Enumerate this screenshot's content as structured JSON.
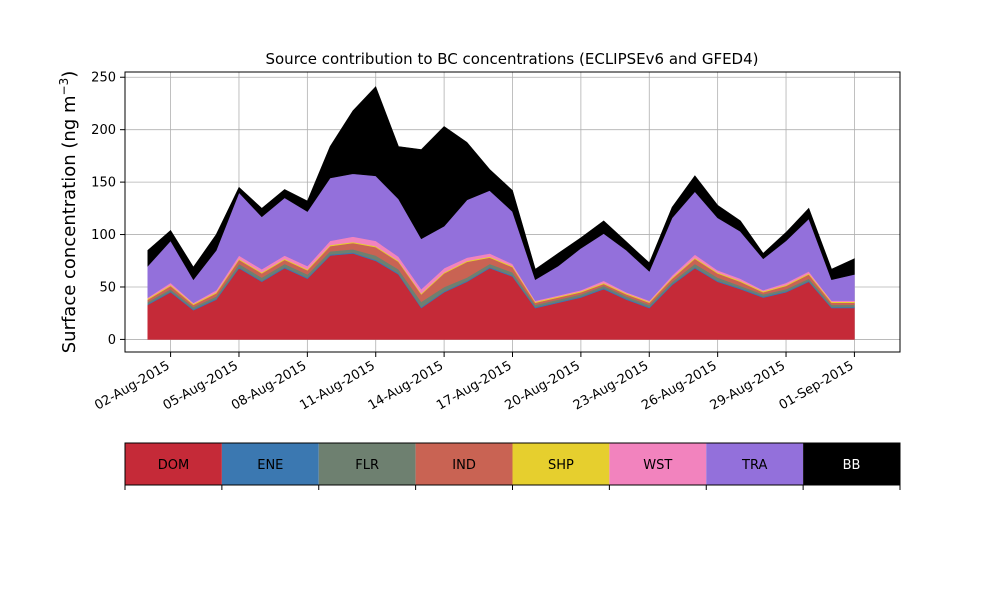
{
  "chart_data": {
    "type": "area",
    "stacked": true,
    "title": "Source contribution to BC concentrations (ECLIPSEv6 and GFED4)",
    "ylabel": "Surface concentration (ng m",
    "ylabel_unit_superscript": "−3",
    "ylabel_close": ")",
    "xlabel": "",
    "ylim": [
      -12,
      255
    ],
    "xlim": [
      "2015-07-31",
      "2015-09-03"
    ],
    "grid": true,
    "x_ticks": [
      "02-Aug-2015",
      "05-Aug-2015",
      "08-Aug-2015",
      "11-Aug-2015",
      "14-Aug-2015",
      "17-Aug-2015",
      "20-Aug-2015",
      "23-Aug-2015",
      "26-Aug-2015",
      "29-Aug-2015",
      "01-Sep-2015"
    ],
    "y_ticks": [
      0,
      50,
      100,
      150,
      200,
      250
    ],
    "x": [
      "2015-08-01",
      "2015-08-02",
      "2015-08-03",
      "2015-08-04",
      "2015-08-05",
      "2015-08-06",
      "2015-08-07",
      "2015-08-08",
      "2015-08-09",
      "2015-08-10",
      "2015-08-11",
      "2015-08-12",
      "2015-08-13",
      "2015-08-14",
      "2015-08-15",
      "2015-08-16",
      "2015-08-17",
      "2015-08-18",
      "2015-08-19",
      "2015-08-20",
      "2015-08-21",
      "2015-08-22",
      "2015-08-23",
      "2015-08-24",
      "2015-08-25",
      "2015-08-26",
      "2015-08-27",
      "2015-08-28",
      "2015-08-29",
      "2015-08-30",
      "2015-08-31",
      "2015-09-01"
    ],
    "series": [
      {
        "name": "DOM",
        "color": "#c52a38",
        "values": [
          33,
          45,
          28,
          38,
          68,
          55,
          68,
          58,
          80,
          82,
          75,
          62,
          30,
          45,
          55,
          68,
          60,
          30,
          35,
          40,
          48,
          38,
          30,
          52,
          68,
          55,
          48,
          40,
          45,
          55,
          30,
          30
        ]
      },
      {
        "name": "ENE",
        "color": "#3b78b1",
        "values": [
          1,
          1,
          1,
          1,
          1,
          1,
          1,
          1,
          1,
          1,
          1,
          1,
          1,
          1,
          1,
          1,
          1,
          1,
          1,
          1,
          1,
          1,
          1,
          1,
          1,
          1,
          1,
          1,
          1,
          1,
          1,
          1
        ]
      },
      {
        "name": "FLR",
        "color": "#6e8070",
        "values": [
          2,
          2,
          2,
          2,
          3,
          3,
          3,
          3,
          3,
          3,
          4,
          4,
          5,
          4,
          3,
          3,
          3,
          2,
          2,
          2,
          2,
          2,
          2,
          2,
          3,
          3,
          2,
          2,
          2,
          2,
          2,
          2
        ]
      },
      {
        "name": "IND",
        "color": "#c96353",
        "values": [
          2,
          3,
          2,
          3,
          4,
          4,
          4,
          4,
          5,
          6,
          8,
          7,
          7,
          13,
          15,
          6,
          5,
          2,
          2,
          2,
          2,
          2,
          2,
          3,
          5,
          4,
          4,
          2,
          3,
          4,
          2,
          2
        ]
      },
      {
        "name": "SHP",
        "color": "#e6cf2e",
        "values": [
          1,
          1,
          1,
          1,
          1,
          1,
          1,
          1,
          1,
          1,
          1,
          1,
          1,
          1,
          1,
          1,
          1,
          1,
          1,
          1,
          1,
          1,
          1,
          1,
          1,
          1,
          1,
          1,
          1,
          1,
          1,
          1
        ]
      },
      {
        "name": "WST",
        "color": "#f283be",
        "values": [
          1,
          2,
          1,
          2,
          3,
          3,
          3,
          3,
          4,
          5,
          5,
          4,
          4,
          4,
          3,
          3,
          2,
          1,
          1,
          1,
          2,
          1,
          1,
          2,
          3,
          2,
          2,
          1,
          2,
          2,
          1,
          1
        ]
      },
      {
        "name": "TRA",
        "color": "#9370db",
        "values": [
          30,
          40,
          22,
          38,
          60,
          50,
          55,
          52,
          60,
          60,
          62,
          55,
          48,
          40,
          55,
          60,
          50,
          20,
          28,
          40,
          45,
          40,
          28,
          55,
          60,
          50,
          45,
          30,
          40,
          50,
          20,
          25
        ]
      },
      {
        "name": "BB",
        "color": "#000000",
        "values": [
          15,
          10,
          12,
          15,
          5,
          8,
          8,
          10,
          30,
          60,
          85,
          50,
          85,
          95,
          55,
          20,
          20,
          10,
          12,
          10,
          12,
          8,
          8,
          10,
          15,
          12,
          10,
          5,
          8,
          10,
          10,
          15
        ]
      }
    ]
  }
}
